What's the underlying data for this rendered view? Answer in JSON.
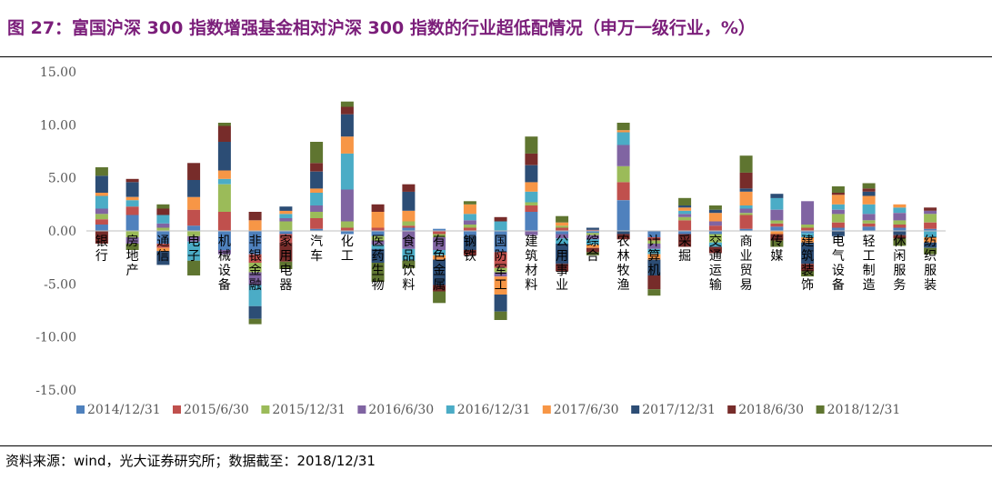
{
  "title": "图 27：富国沪深 300 指数增强基金相对沪深 300 指数的行业超低配情况（申万一级行业，%）",
  "source": "资料来源：wind，光大证券研究所；数据截至：2018/12/31",
  "colors": {
    "title": "#7b1e7a",
    "series": [
      "#4f81bd",
      "#c0504d",
      "#9bbb59",
      "#8064a2",
      "#4bacc6",
      "#f79646",
      "#2c4d75",
      "#772c2a",
      "#5f7530"
    ]
  },
  "chart_data": {
    "type": "bar",
    "stacked": true,
    "ylim": [
      -15,
      15
    ],
    "yticks": [
      "15.00",
      "10.00",
      "5.00",
      "0.00",
      "-5.00",
      "-10.00",
      "-15.00"
    ],
    "legend_position": "bottom",
    "categories": [
      "银行",
      "房地产",
      "通信",
      "电子",
      "机械设备",
      "非银金融",
      "家用电器",
      "汽车",
      "化工",
      "医药生物",
      "食品饮料",
      "有色金属",
      "钢铁",
      "国防军工",
      "建筑材料",
      "公用事业",
      "综合",
      "农林牧渔",
      "计算机",
      "采掘",
      "交通运输",
      "商业贸易",
      "传媒",
      "建筑装饰",
      "电气设备",
      "轻工制造",
      "休闲服务",
      "纺织服装"
    ],
    "series": [
      {
        "name": "2014/12/31",
        "values": [
          0.6,
          1.5,
          -1.2,
          0.5,
          -1.8,
          -2.2,
          -0.3,
          0.2,
          -0.3,
          -0.5,
          0.3,
          0.2,
          -0.5,
          -2.0,
          1.8,
          -0.3,
          -0.2,
          2.9,
          -0.6,
          -0.3,
          -0.3,
          0.2,
          0.4,
          -0.2,
          0.3,
          0.4,
          0.3,
          0.2
        ]
      },
      {
        "name": "2015/6/30",
        "values": [
          0.5,
          0.8,
          -0.4,
          1.5,
          1.8,
          -0.8,
          -0.8,
          1.0,
          0.3,
          0.3,
          0.2,
          -0.3,
          0.3,
          -1.5,
          0.6,
          0.3,
          0.1,
          1.7,
          -0.3,
          1.0,
          0.5,
          1.3,
          0.3,
          0.3,
          0.5,
          0.3,
          0.3,
          0.6
        ]
      },
      {
        "name": "2015/12/31",
        "values": [
          0.5,
          -0.6,
          0.3,
          -0.5,
          2.6,
          -0.9,
          0.9,
          0.6,
          0.6,
          -0.4,
          0.4,
          -0.3,
          0.3,
          -0.4,
          0.3,
          0.2,
          -0.2,
          1.5,
          -0.3,
          0.3,
          -0.8,
          0.2,
          0.3,
          0.3,
          0.8,
          0.3,
          0.4,
          0.8
        ]
      },
      {
        "name": "2016/6/30",
        "values": [
          0.5,
          -0.6,
          0.4,
          -0.5,
          -0.4,
          -1.2,
          0.3,
          0.6,
          3.0,
          -0.4,
          -1.7,
          -1.2,
          0.4,
          -0.4,
          -0.4,
          -0.4,
          -0.4,
          2.0,
          -0.5,
          0.3,
          0.4,
          0.4,
          1.0,
          2.2,
          0.4,
          0.6,
          0.7,
          0.3
        ]
      },
      {
        "name": "2016/12/31",
        "values": [
          1.2,
          0.6,
          0.8,
          -1.8,
          0.5,
          -2.0,
          0.4,
          1.2,
          3.4,
          -0.4,
          -1.1,
          -0.5,
          0.6,
          0.9,
          1.0,
          -0.5,
          -0.5,
          1.2,
          -0.5,
          0.3,
          -0.4,
          0.3,
          1.1,
          -0.4,
          0.5,
          0.9,
          0.5,
          -0.6
        ]
      },
      {
        "name": "2017/6/30",
        "values": [
          0.3,
          0.3,
          -0.3,
          1.2,
          0.8,
          1.0,
          0.3,
          0.4,
          1.6,
          1.5,
          1.0,
          -0.4,
          0.9,
          -1.7,
          0.9,
          0.3,
          -0.3,
          0.2,
          -0.5,
          0.3,
          0.8,
          1.3,
          -0.3,
          -0.5,
          0.9,
          0.8,
          0.3,
          -0.5
        ]
      },
      {
        "name": "2017/12/31",
        "values": [
          1.6,
          1.4,
          -1.3,
          1.6,
          2.7,
          -1.2,
          0.4,
          1.6,
          2.1,
          -1.3,
          1.8,
          -2.4,
          -1.3,
          -1.6,
          1.6,
          -1.9,
          0.2,
          -0.3,
          -1.5,
          0.2,
          0.3,
          0.3,
          0.4,
          -2.0,
          -0.5,
          0.4,
          -0.4,
          -0.5
        ]
      },
      {
        "name": "2018/6/30",
        "values": [
          -1.2,
          0.3,
          0.6,
          1.6,
          1.5,
          0.8,
          -1.8,
          0.8,
          0.7,
          0.7,
          0.7,
          -0.6,
          -0.5,
          0.4,
          1.1,
          -0.7,
          -0.4,
          -0.5,
          -1.3,
          -1.2,
          -0.6,
          1.5,
          -0.6,
          -0.7,
          0.2,
          0.3,
          -0.3,
          0.3
        ]
      },
      {
        "name": "2018/12/31",
        "values": [
          0.8,
          -0.6,
          0.4,
          -1.4,
          0.3,
          -0.5,
          -0.7,
          2.0,
          0.5,
          -1.8,
          -0.7,
          -1.1,
          0.3,
          -0.8,
          1.6,
          0.6,
          -0.3,
          0.7,
          -0.6,
          0.7,
          0.4,
          1.6,
          -0.6,
          -0.5,
          0.6,
          0.5,
          -0.7,
          -0.6
        ]
      }
    ]
  }
}
